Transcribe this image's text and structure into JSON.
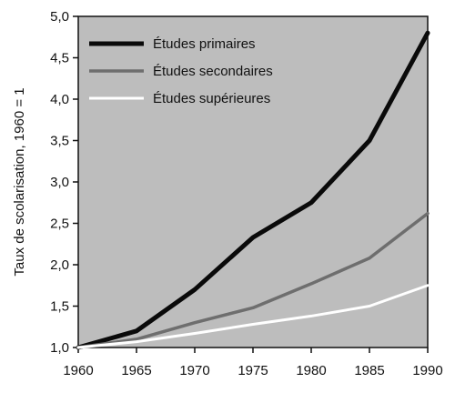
{
  "chart_data": {
    "type": "line",
    "title": "",
    "xlabel": "",
    "ylabel": "Taux de scolarisation, 1960 = 1",
    "x": [
      1960,
      1965,
      1970,
      1975,
      1980,
      1985,
      1990
    ],
    "x_tick_labels": [
      "1960",
      "1965",
      "1970",
      "1975",
      "1980",
      "1985",
      "1990"
    ],
    "xlim": [
      1960,
      1990
    ],
    "ylim": [
      1.0,
      5.0
    ],
    "y_ticks": [
      1.0,
      1.5,
      2.0,
      2.5,
      3.0,
      3.5,
      4.0,
      4.5,
      5.0
    ],
    "y_tick_labels": [
      "1,0",
      "1,5",
      "2,0",
      "2,5",
      "3,0",
      "3,5",
      "4,0",
      "4,5",
      "5,0"
    ],
    "grid": false,
    "legend_position": "top-left",
    "colors": {
      "plot_background": "#bdbdbd",
      "primaires": "#0a0a0a",
      "secondaires": "#6e6e6e",
      "superieures": "#ffffff"
    },
    "series": [
      {
        "name": "Études primaires",
        "color_key": "primaires",
        "values": [
          1.0,
          1.2,
          1.7,
          2.33,
          2.75,
          3.5,
          4.8
        ]
      },
      {
        "name": "Études secondaires",
        "color_key": "secondaires",
        "values": [
          1.0,
          1.1,
          1.3,
          1.48,
          1.77,
          2.08,
          2.62
        ]
      },
      {
        "name": "Études supérieures",
        "color_key": "superieures",
        "values": [
          1.0,
          1.07,
          1.17,
          1.28,
          1.38,
          1.5,
          1.75
        ]
      }
    ]
  }
}
